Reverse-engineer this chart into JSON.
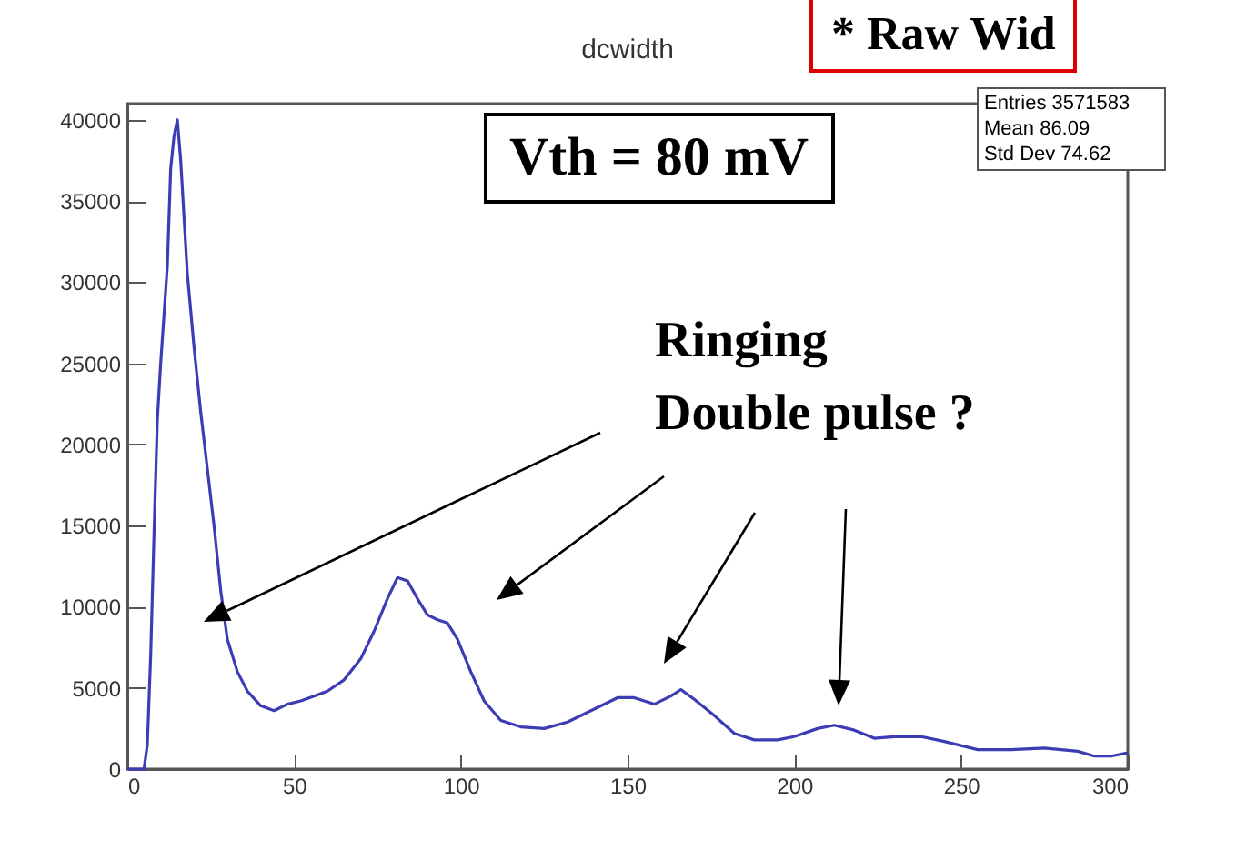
{
  "chart_data": {
    "type": "line",
    "title": "dcwidth",
    "x": [
      0,
      5,
      6,
      7,
      8,
      9,
      10,
      11,
      12,
      13,
      14,
      15,
      16,
      17,
      18,
      20,
      22,
      24,
      26,
      28,
      30,
      33,
      36,
      40,
      44,
      48,
      52,
      56,
      60,
      65,
      70,
      74,
      78,
      81,
      84,
      87,
      90,
      93,
      96,
      99,
      103,
      107,
      112,
      118,
      125,
      132,
      140,
      147,
      152,
      158,
      163,
      166,
      170,
      176,
      182,
      188,
      195,
      200,
      207,
      212,
      218,
      224,
      230,
      238,
      245,
      255,
      265,
      275,
      285,
      290,
      295,
      300
    ],
    "series": [
      {
        "color": "#3c3cb4",
        "values": [
          0,
          0,
          1500,
          7000,
          14500,
          21500,
          25000,
          28000,
          31000,
          37000,
          39000,
          40000,
          37500,
          34000,
          30500,
          26000,
          22000,
          18500,
          15000,
          11000,
          8000,
          6000,
          4800,
          3900,
          3600,
          4000,
          4200,
          4500,
          4800,
          5500,
          6800,
          8500,
          10500,
          11800,
          11600,
          10500,
          9500,
          9200,
          9000,
          8000,
          6000,
          4200,
          3000,
          2600,
          2500,
          2900,
          3700,
          4400,
          4400,
          4000,
          4500,
          4900,
          4300,
          3300,
          2200,
          1800,
          1800,
          2000,
          2500,
          2700,
          2400,
          1900,
          2000,
          2000,
          1700,
          1200,
          1200,
          1300,
          1100,
          800,
          800,
          1000
        ]
      }
    ],
    "xlim": [
      0,
      300
    ],
    "xticks": [
      0,
      50,
      100,
      150,
      200,
      250,
      300
    ],
    "ylim": [
      0,
      41000
    ],
    "yticks": [
      0,
      5000,
      10000,
      15000,
      20000,
      25000,
      30000,
      35000,
      40000
    ],
    "grid": false,
    "marker": "none",
    "line_style": "solid",
    "annotations": [
      "Vth = 80 mV",
      "Ringing\nDouble pulse ?",
      "* Raw Wid",
      "Entries 3571583",
      "Mean 86.09",
      "Std Dev 74.62"
    ]
  }
}
